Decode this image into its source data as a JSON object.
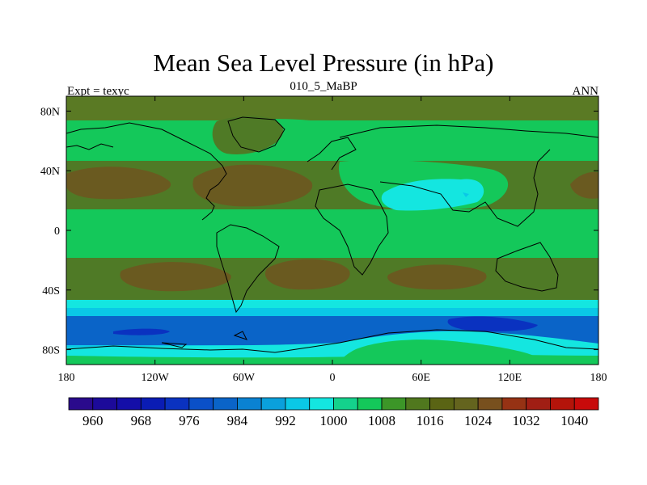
{
  "chart_data": {
    "type": "heatmap",
    "title": "Mean Sea Level Pressure (in hPa)",
    "subtitle": "010_5_MaBP",
    "left_string": "Expt = texyc",
    "right_string": "ANN",
    "x_ticks": [
      "180",
      "120W",
      "60W",
      "0",
      "60E",
      "120E",
      "180"
    ],
    "x_values": [
      -180,
      -120,
      -60,
      0,
      60,
      120,
      180
    ],
    "y_ticks": [
      "80N",
      "40N",
      "0",
      "40S",
      "80S"
    ],
    "y_values": [
      80,
      40,
      0,
      -40,
      -80
    ],
    "xlim": [
      -180,
      180
    ],
    "ylim": [
      -90,
      90
    ],
    "colorbar": {
      "labels": [
        "960",
        "968",
        "976",
        "984",
        "992",
        "1000",
        "1008",
        "1016",
        "1024",
        "1032",
        "1040"
      ],
      "levels": [
        956,
        960,
        964,
        968,
        972,
        976,
        980,
        984,
        988,
        992,
        996,
        1000,
        1004,
        1008,
        1012,
        1016,
        1020,
        1024,
        1028,
        1032,
        1036,
        1040,
        1044
      ],
      "colors": [
        "#2a0a8c",
        "#1c0a9a",
        "#140ea8",
        "#0a1cb4",
        "#0a32c0",
        "#0a50c8",
        "#0a64c8",
        "#0a82d2",
        "#0aa0dc",
        "#0ac8e6",
        "#14e6e0",
        "#14d28c",
        "#14c85a",
        "#3c9628",
        "#50781e",
        "#5a6414",
        "#64641e",
        "#78501e",
        "#963214",
        "#a01e14",
        "#b4140a",
        "#c80a0a"
      ]
    },
    "pressure_bands": [
      {
        "lat_range": [
          60,
          90
        ],
        "approx_hPa": 1014
      },
      {
        "lat_range": [
          45,
          60
        ],
        "approx_hPa": 1010
      },
      {
        "lat_range": [
          20,
          40
        ],
        "approx_hPa": 1018
      },
      {
        "lat_range": [
          -15,
          15
        ],
        "approx_hPa": 1010
      },
      {
        "lat_range": [
          -40,
          -20
        ],
        "approx_hPa": 1018
      },
      {
        "lat_range": [
          -50,
          -45
        ],
        "approx_hPa": 1002
      },
      {
        "lat_range": [
          -70,
          -55
        ],
        "approx_hPa": 985
      },
      {
        "lat_range": [
          -90,
          -75
        ],
        "approx_hPa": 1006
      }
    ]
  }
}
